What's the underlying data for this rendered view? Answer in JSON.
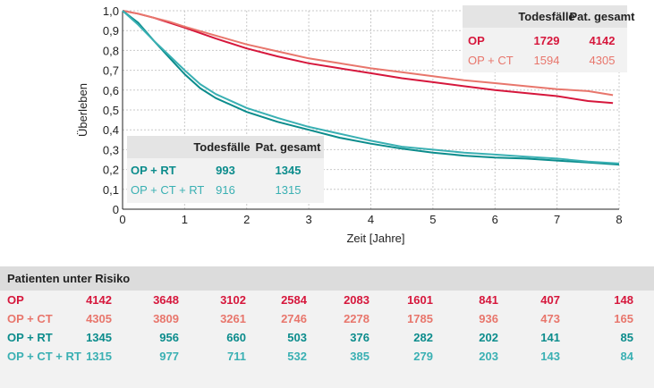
{
  "chart_data": {
    "type": "line",
    "title": "",
    "xlabel": "Zeit [Jahre]",
    "ylabel": "Überleben",
    "xlim": [
      0,
      8
    ],
    "ylim": [
      0,
      1.0
    ],
    "x_ticks": [
      "0",
      "1",
      "2",
      "3",
      "4",
      "5",
      "6",
      "7",
      "8"
    ],
    "y_ticks": [
      "0",
      "0,1",
      "0,2",
      "0,3",
      "0,4",
      "0,5",
      "0,6",
      "0,7",
      "0,8",
      "0,9",
      "1,0"
    ],
    "series": [
      {
        "name": "OP",
        "color": "#d6173c",
        "x": [
          0,
          0.25,
          0.5,
          0.75,
          1,
          1.5,
          2,
          2.5,
          3,
          3.5,
          4,
          4.5,
          5,
          5.5,
          6,
          6.5,
          7,
          7.5,
          7.9
        ],
        "y": [
          1.0,
          0.985,
          0.965,
          0.94,
          0.915,
          0.86,
          0.81,
          0.77,
          0.735,
          0.71,
          0.685,
          0.66,
          0.64,
          0.62,
          0.6,
          0.585,
          0.57,
          0.545,
          0.535
        ]
      },
      {
        "name": "OP + CT",
        "color": "#e8766c",
        "x": [
          0,
          0.25,
          0.5,
          0.75,
          1,
          1.5,
          2,
          2.5,
          3,
          3.5,
          4,
          4.5,
          5,
          5.5,
          6,
          6.5,
          7,
          7.5,
          7.9
        ],
        "y": [
          1.0,
          0.985,
          0.965,
          0.945,
          0.92,
          0.875,
          0.83,
          0.795,
          0.76,
          0.735,
          0.71,
          0.69,
          0.67,
          0.65,
          0.635,
          0.62,
          0.605,
          0.595,
          0.575
        ]
      },
      {
        "name": "OP + RT",
        "color": "#0b8c8c",
        "x": [
          0,
          0.25,
          0.5,
          0.75,
          1,
          1.25,
          1.5,
          2,
          2.5,
          3,
          3.5,
          4,
          4.5,
          5,
          5.5,
          6,
          6.5,
          7,
          7.5,
          8
        ],
        "y": [
          1.0,
          0.94,
          0.85,
          0.765,
          0.68,
          0.61,
          0.56,
          0.49,
          0.44,
          0.4,
          0.36,
          0.33,
          0.305,
          0.285,
          0.27,
          0.26,
          0.255,
          0.245,
          0.235,
          0.225
        ]
      },
      {
        "name": "OP + CT + RT",
        "color": "#3ab0b3",
        "x": [
          0,
          0.25,
          0.5,
          0.75,
          1,
          1.25,
          1.5,
          2,
          2.5,
          3,
          3.5,
          4,
          4.5,
          5,
          5.5,
          6,
          6.5,
          7,
          7.5,
          8
        ],
        "y": [
          1.0,
          0.93,
          0.85,
          0.775,
          0.7,
          0.63,
          0.58,
          0.51,
          0.46,
          0.415,
          0.38,
          0.345,
          0.315,
          0.3,
          0.285,
          0.275,
          0.265,
          0.255,
          0.24,
          0.23
        ]
      }
    ]
  },
  "legend_top": {
    "headers": [
      "Todesfälle",
      "Pat. gesamt"
    ],
    "rows": [
      {
        "label": "OP",
        "deaths": "1729",
        "total": "4142",
        "color": "#d6173c"
      },
      {
        "label": "OP + CT",
        "deaths": "1594",
        "total": "4305",
        "color": "#e8766c"
      }
    ]
  },
  "legend_bottom": {
    "headers": [
      "Todesfälle",
      "Pat. gesamt"
    ],
    "rows": [
      {
        "label": "OP + RT",
        "deaths": "993",
        "total": "1345",
        "color": "#0b8c8c"
      },
      {
        "label": "OP + CT + RT",
        "deaths": "916",
        "total": "1315",
        "color": "#3ab0b3"
      }
    ]
  },
  "risk_table": {
    "title": "Patienten unter Risiko",
    "rows": [
      {
        "label": "OP",
        "color": "#d6173c",
        "values": [
          "4142",
          "3648",
          "3102",
          "2584",
          "2083",
          "1601",
          "841",
          "407",
          "148"
        ]
      },
      {
        "label": "OP + CT",
        "color": "#e8766c",
        "values": [
          "4305",
          "3809",
          "3261",
          "2746",
          "2278",
          "1785",
          "936",
          "473",
          "165"
        ]
      },
      {
        "label": "OP + RT",
        "color": "#0b8c8c",
        "values": [
          "1345",
          "956",
          "660",
          "503",
          "376",
          "282",
          "202",
          "141",
          "85"
        ]
      },
      {
        "label": "OP + CT + RT",
        "color": "#3ab0b3",
        "values": [
          "1315",
          "977",
          "711",
          "532",
          "385",
          "279",
          "203",
          "143",
          "84"
        ]
      }
    ]
  }
}
